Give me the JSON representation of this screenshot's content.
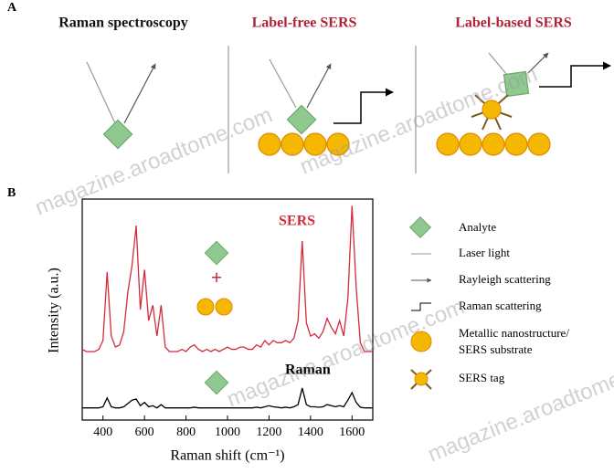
{
  "panel_a": {
    "label": "A",
    "columns": [
      "Raman spectroscopy",
      "Label-free SERS",
      "Label-based SERS"
    ]
  },
  "panel_b": {
    "label": "B"
  },
  "chart_data": {
    "type": "line",
    "x_label": "Raman shift (cm⁻¹)",
    "y_label": "Intensity (a.u.)",
    "x": [
      300,
      320,
      340,
      360,
      380,
      400,
      420,
      440,
      460,
      480,
      500,
      520,
      540,
      560,
      580,
      600,
      620,
      640,
      660,
      680,
      700,
      720,
      740,
      760,
      780,
      800,
      820,
      840,
      860,
      880,
      900,
      920,
      940,
      960,
      980,
      1000,
      1020,
      1040,
      1060,
      1080,
      1100,
      1120,
      1140,
      1160,
      1180,
      1200,
      1220,
      1240,
      1260,
      1280,
      1300,
      1320,
      1340,
      1360,
      1380,
      1400,
      1420,
      1440,
      1460,
      1480,
      1500,
      1520,
      1540,
      1560,
      1580,
      1600,
      1620,
      1640,
      1660,
      1680,
      1700
    ],
    "series": [
      {
        "name": "SERS",
        "color": "#d42a3c",
        "values": [
          32,
          31,
          31,
          31,
          32,
          36,
          67,
          38,
          33,
          34,
          40,
          58,
          70,
          88,
          50,
          68,
          45,
          52,
          38,
          52,
          33,
          31,
          31,
          31,
          32,
          31,
          33,
          34,
          32,
          31,
          32,
          31,
          32,
          31,
          32,
          33,
          32,
          32,
          33,
          33,
          32,
          32,
          34,
          33,
          36,
          34,
          36,
          35,
          35,
          36,
          35,
          37,
          45,
          81,
          44,
          38,
          39,
          37,
          40,
          46,
          42,
          39,
          45,
          38,
          55,
          97,
          60,
          35,
          31,
          31,
          31
        ]
      },
      {
        "name": "Raman",
        "color": "#000000",
        "values": [
          5.5,
          5.5,
          5.5,
          5.5,
          5.5,
          6,
          10,
          6,
          5.5,
          5.5,
          6,
          7.5,
          9,
          9.5,
          6.5,
          8,
          6,
          6.5,
          5.5,
          7,
          5.5,
          5.5,
          5.5,
          5.5,
          5.5,
          5.5,
          5.5,
          5.8,
          5.5,
          5.5,
          5.5,
          5.5,
          5.5,
          5.5,
          5.5,
          5.5,
          5.5,
          5.5,
          5.5,
          5.5,
          5.5,
          5.5,
          5.8,
          5.5,
          6,
          6.5,
          6,
          5.8,
          5.5,
          5.8,
          5.5,
          6,
          7,
          14.5,
          7,
          6,
          6,
          5.8,
          6,
          7,
          6.5,
          6,
          6.5,
          6,
          9,
          12.4,
          8,
          5.8,
          5.5,
          5.5,
          5.5
        ]
      }
    ],
    "xlim": [
      300,
      1700
    ],
    "xticks": [
      400,
      600,
      800,
      1000,
      1200,
      1400,
      1600
    ],
    "ylim": [
      0,
      100
    ]
  },
  "key": [
    {
      "lines": [
        "Analyte"
      ]
    },
    {
      "lines": [
        "Laser light"
      ]
    },
    {
      "lines": [
        "Rayleigh scattering"
      ]
    },
    {
      "lines": [
        "Raman scattering"
      ]
    },
    {
      "lines": [
        "Metallic nanostructure/",
        "SERS substrate"
      ]
    },
    {
      "lines": [
        "SERS tag"
      ]
    }
  ],
  "watermark": "magazine.aroadtome.com"
}
